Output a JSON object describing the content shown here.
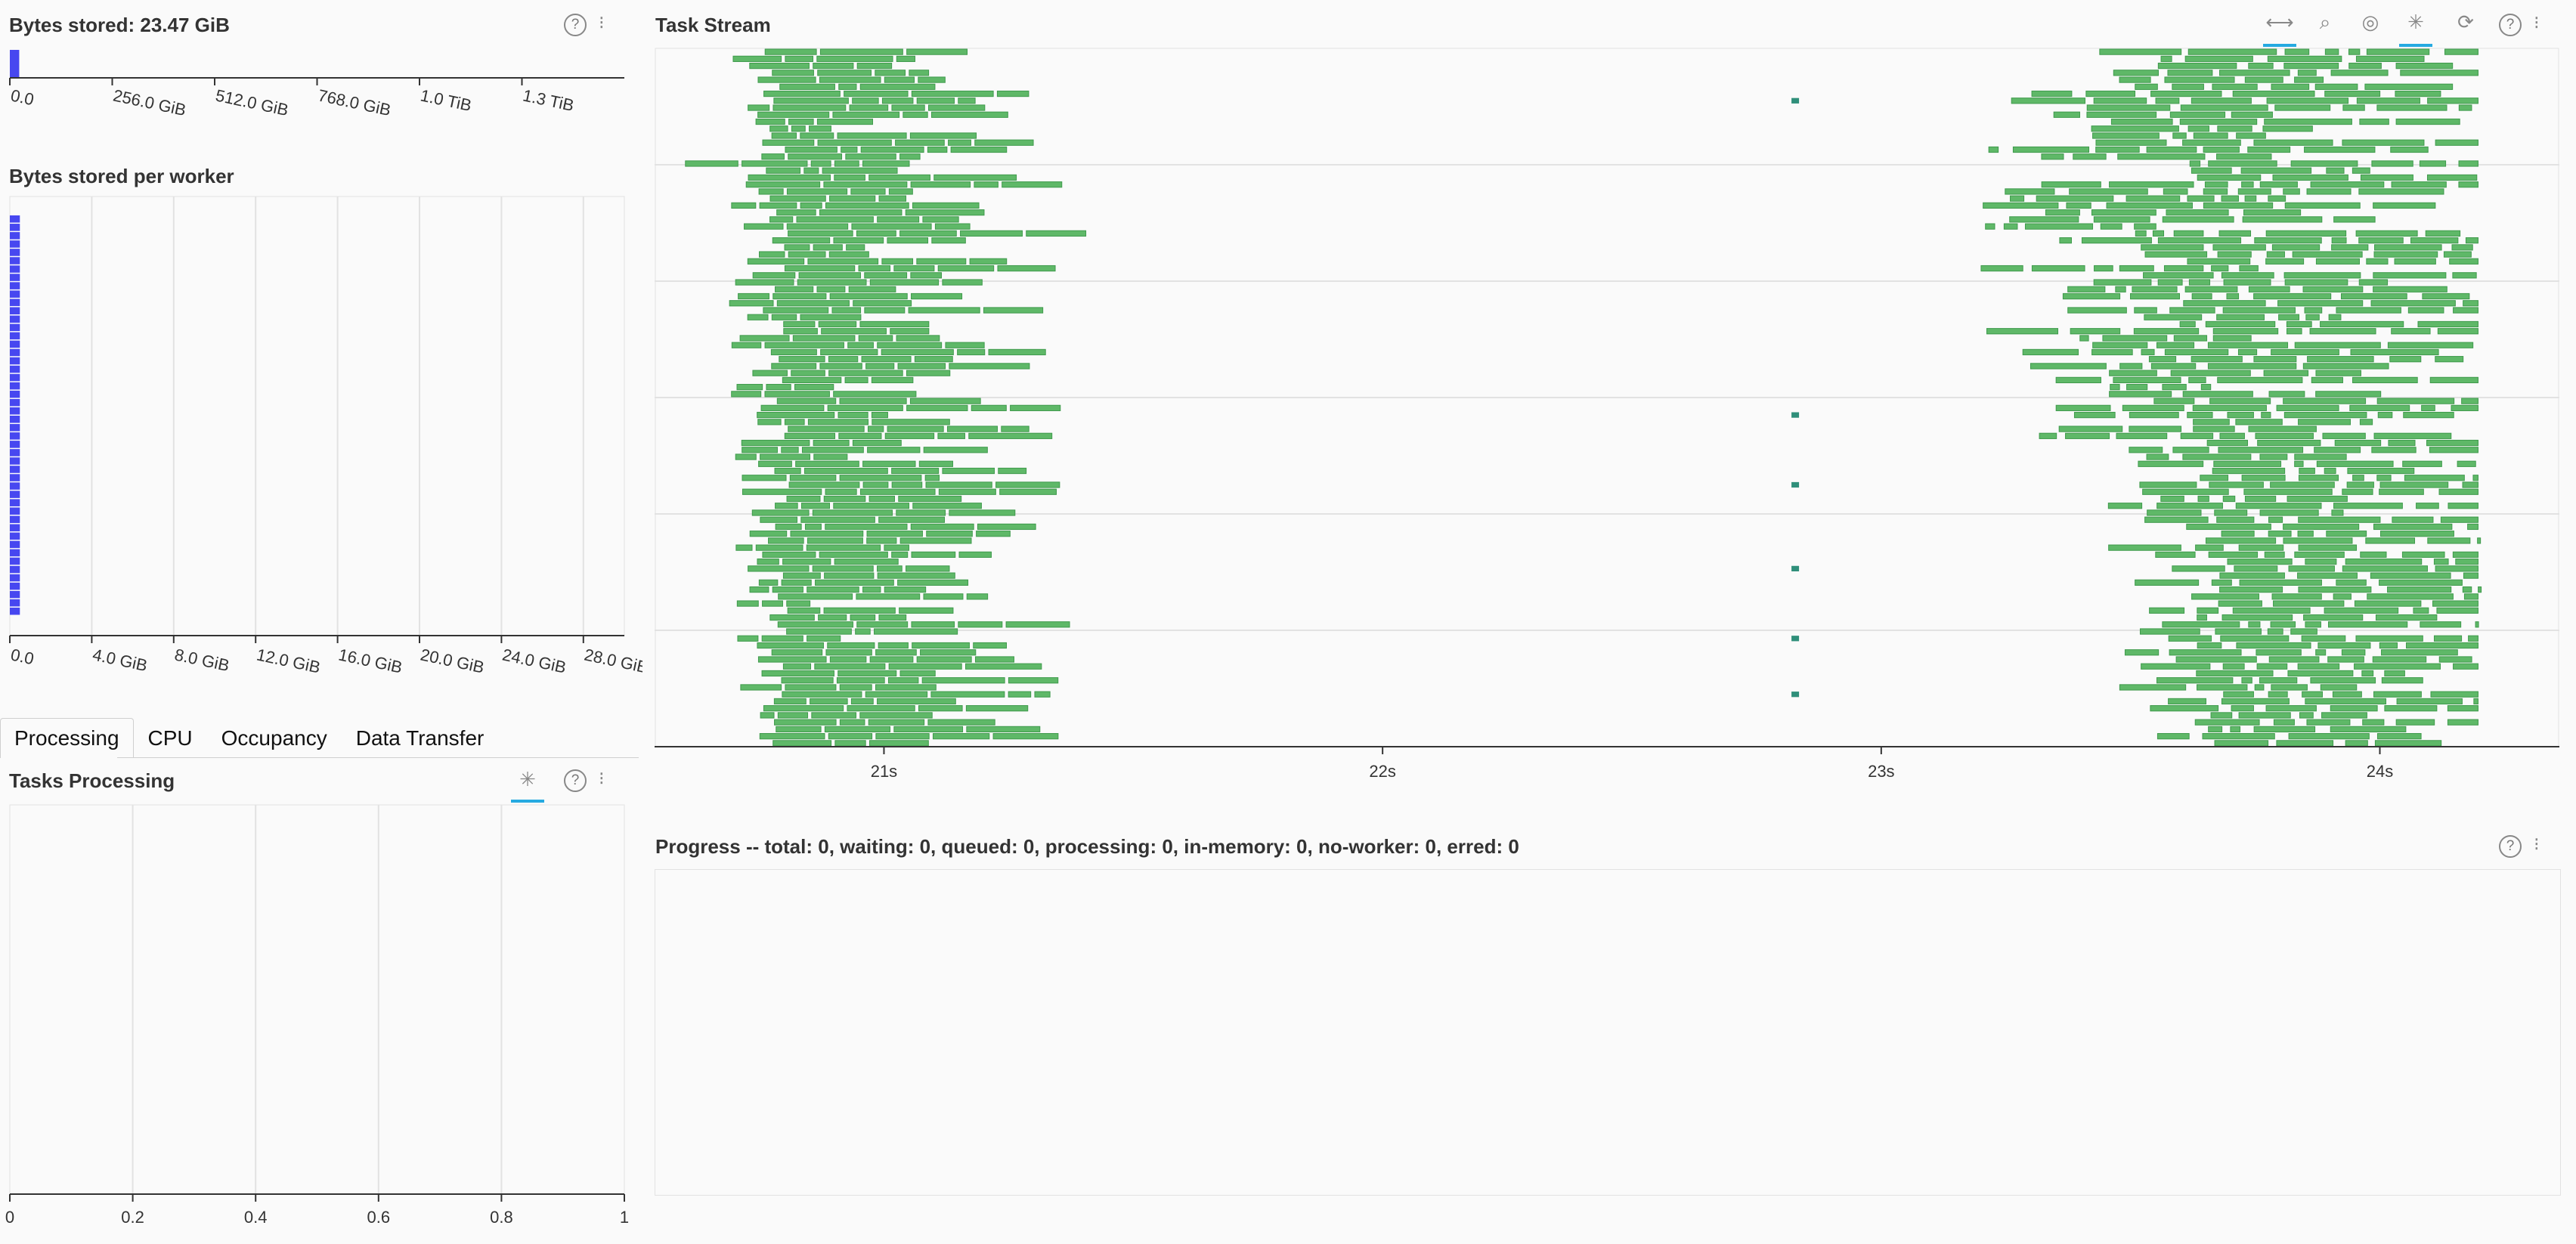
{
  "bytes_stored": {
    "title": "Bytes stored: 23.47 GiB",
    "chart_data": {
      "type": "bar",
      "orientation": "horizontal",
      "values_gib": [
        23.47
      ],
      "xlim_gib": [
        0,
        1536
      ],
      "ticks": [
        "0.0",
        "256.0 GiB",
        "512.0 GiB",
        "768.0 GiB",
        "1.0 TiB",
        "1.3 TiB"
      ],
      "bar_color": "#4747f0"
    }
  },
  "bytes_per_worker": {
    "title": "Bytes stored per worker",
    "chart_data": {
      "type": "bar",
      "orientation": "horizontal",
      "worker_count": 48,
      "value_gib_each": 0.49,
      "xlim_gib": [
        0,
        30
      ],
      "ticks": [
        "0.0",
        "4.0 GiB",
        "8.0 GiB",
        "12.0 GiB",
        "16.0 GiB",
        "20.0 GiB",
        "24.0 GiB",
        "28.0 GiB"
      ],
      "bar_color": "#4747f0"
    }
  },
  "tabs": [
    {
      "label": "Processing",
      "active": true
    },
    {
      "label": "CPU",
      "active": false
    },
    {
      "label": "Occupancy",
      "active": false
    },
    {
      "label": "Data Transfer",
      "active": false
    }
  ],
  "tasks_processing": {
    "title": "Tasks Processing",
    "chart_data": {
      "type": "bar",
      "orientation": "horizontal",
      "values": [],
      "xlim": [
        0,
        1
      ],
      "ticks": [
        "0",
        "0.2",
        "0.4",
        "0.6",
        "0.8",
        "1"
      ]
    }
  },
  "task_stream": {
    "title": "Task Stream",
    "chart_data": {
      "type": "gantt",
      "xlim_s": [
        20.54,
        24.36
      ],
      "ticks": [
        "21s",
        "22s",
        "23s",
        "24s"
      ],
      "tick_values_s": [
        21,
        22,
        23,
        24
      ],
      "task_color": "#5fb868",
      "task_border": "#3f9a4c",
      "transfer_color": "#2f8f7a",
      "rows": 100,
      "horizontal_gridlines": 5
    }
  },
  "progress": {
    "title": "Progress -- total: 0, waiting: 0, queued: 0, processing: 0, in-memory: 0, no-worker: 0, erred: 0"
  },
  "icons": {
    "help": "?",
    "menu": "⁝",
    "pan": "⟷",
    "zoom": "⌕",
    "wheel_zoom": "◎",
    "tap": "✳",
    "reset": "⟳"
  }
}
